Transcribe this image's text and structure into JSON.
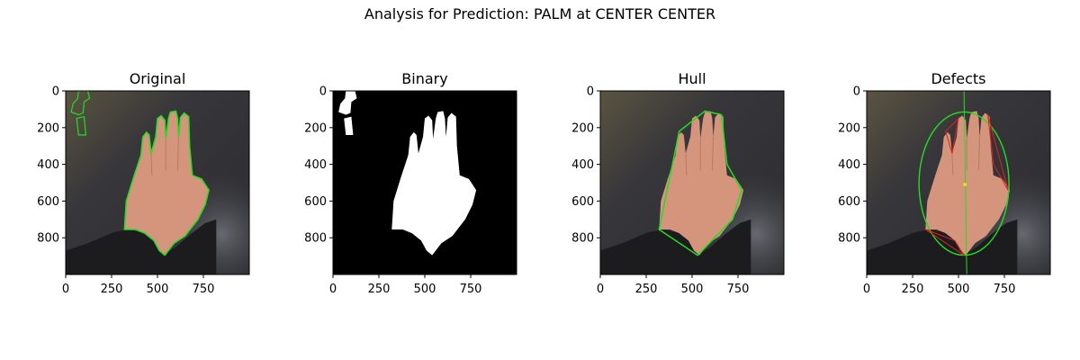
{
  "figure": {
    "suptitle": "Analysis for Prediction: PALM at CENTER CENTER"
  },
  "chart_data": [
    {
      "type": "image",
      "title": "Original",
      "xlim": [
        0,
        1000
      ],
      "ylim": [
        1000,
        0
      ],
      "xticks": [
        0,
        250,
        500,
        750
      ],
      "yticks": [
        0,
        200,
        400,
        600,
        800
      ]
    },
    {
      "type": "image",
      "title": "Binary",
      "xlim": [
        0,
        1000
      ],
      "ylim": [
        1000,
        0
      ],
      "xticks": [
        0,
        250,
        500,
        750
      ],
      "yticks": [
        0,
        200,
        400,
        600,
        800
      ]
    },
    {
      "type": "image",
      "title": "Hull",
      "xlim": [
        0,
        1000
      ],
      "ylim": [
        1000,
        0
      ],
      "xticks": [
        0,
        250,
        500,
        750
      ],
      "yticks": [
        0,
        200,
        400,
        600,
        800
      ]
    },
    {
      "type": "image",
      "title": "Defects",
      "xlim": [
        0,
        1000
      ],
      "ylim": [
        1000,
        0
      ],
      "xticks": [
        0,
        250,
        500,
        750
      ],
      "yticks": [
        0,
        200,
        400,
        600,
        800
      ]
    }
  ],
  "colors": {
    "contour": "#22dd22",
    "defect": "#dd2222",
    "background": "#2f2f31",
    "skin": "#d4957c",
    "sleeve": "#1c1c1e"
  }
}
